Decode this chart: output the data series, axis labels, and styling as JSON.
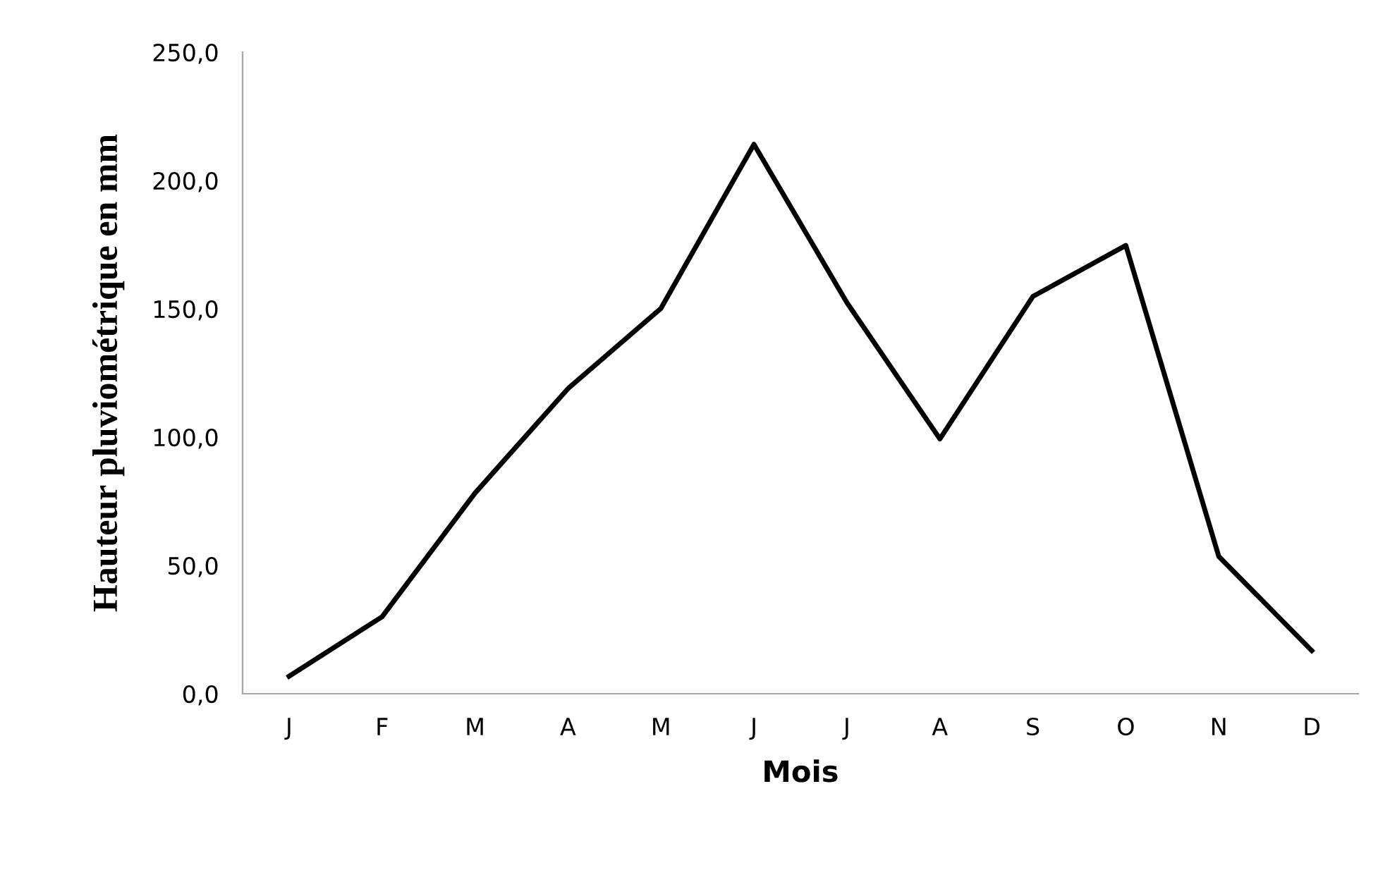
{
  "chart_data": {
    "type": "line",
    "xlabel": "Mois",
    "ylabel": "Hauteur pluviométrique en mm",
    "categories": [
      "J",
      "F",
      "M",
      "A",
      "M",
      "J",
      "J",
      "A",
      "S",
      "O",
      "N",
      "D"
    ],
    "series": [
      {
        "color": "#000000",
        "values": [
          6.8,
          30.0,
          78.2,
          118.9,
          150.2,
          214.1,
          152.4,
          99.3,
          154.8,
          174.7,
          53.5,
          16.8
        ]
      }
    ],
    "ylim": [
      0,
      250
    ],
    "yticks": [
      {
        "value": 0,
        "label": "0,0"
      },
      {
        "value": 50,
        "label": "50,0"
      },
      {
        "value": 100,
        "label": "100,0"
      },
      {
        "value": 150,
        "label": "150,0"
      },
      {
        "value": 200,
        "label": "200,0"
      },
      {
        "value": 250,
        "label": "250,0"
      }
    ],
    "grid": false,
    "legend": false,
    "marker": "none",
    "line_style": "solid"
  }
}
